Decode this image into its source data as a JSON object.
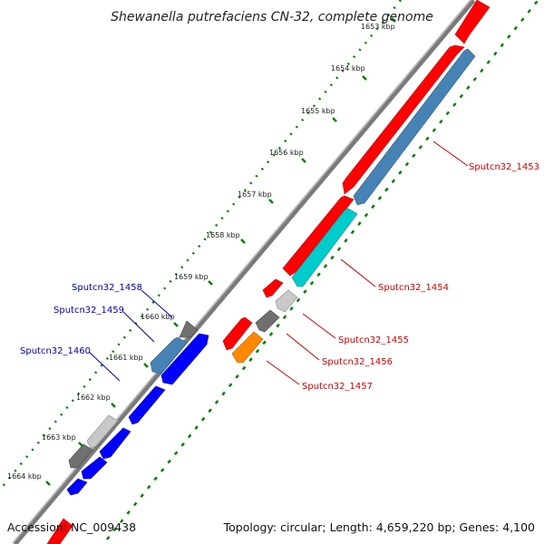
{
  "title": "Shewanella putrefaciens CN-32, complete genome",
  "footer": {
    "accession": "Accession: NC_009438",
    "topology": "Topology: circular; Length: 4,659,220 bp; Genes: 4,100"
  },
  "ruler_labels": [
    "1653 kbp",
    "1654 kbp",
    "1655 kbp",
    "1656 kbp",
    "1657 kbp",
    "1658 kbp",
    "1659 kbp",
    "1660 kbp",
    "1661 kbp",
    "1662 kbp",
    "1663 kbp",
    "1664 kbp"
  ],
  "gene_labels": {
    "g1453": "Sputcn32_1453",
    "g1454": "Sputcn32_1454",
    "g1455": "Sputcn32_1455",
    "g1456": "Sputcn32_1456",
    "g1457": "Sputcn32_1457",
    "g1458": "Sputcn32_1458",
    "g1459": "Sputcn32_1459",
    "g1460": "Sputcn32_1460"
  },
  "colors": {
    "forward_label": "#cc0000",
    "reverse_label": "#0000aa",
    "red": "#ff0000",
    "steelblue": "#4682b4",
    "cyan": "#00cccc",
    "blue": "#0000ff",
    "orange": "#ff8800",
    "gray_dark": "#707070",
    "gray_light": "#c8c8c8",
    "ruler_green": "#008000",
    "backbone": "#808080"
  }
}
